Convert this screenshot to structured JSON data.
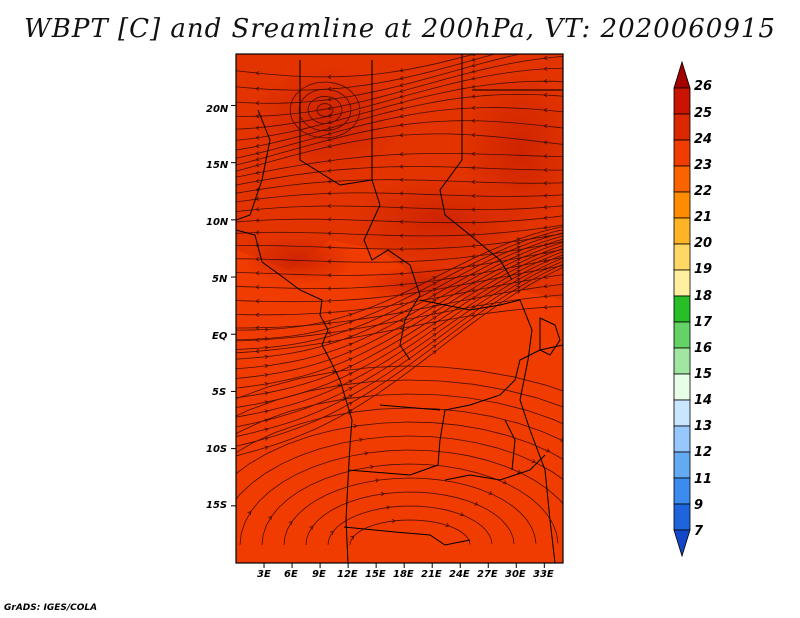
{
  "title": "WBPT [C] and Sreamline at 200hPa, VT: 2020060915",
  "credit": "GrADS: IGES/COLA",
  "map": {
    "variable": "WBPT [C]",
    "overlay": "Sreamline",
    "level": "200hPa",
    "valid_time": "2020060915",
    "lat_range": [
      -20,
      24.5
    ],
    "lon_range": [
      0,
      35
    ],
    "lat_labels": [
      {
        "value": 20,
        "text": "20N"
      },
      {
        "value": 15,
        "text": "15N"
      },
      {
        "value": 10,
        "text": "10N"
      },
      {
        "value": 5,
        "text": "5N"
      },
      {
        "value": 0,
        "text": "EQ"
      },
      {
        "value": -5,
        "text": "5S"
      },
      {
        "value": -10,
        "text": "10S"
      },
      {
        "value": -15,
        "text": "15S"
      }
    ],
    "lon_labels": [
      {
        "value": 3,
        "text": "3E"
      },
      {
        "value": 6,
        "text": "6E"
      },
      {
        "value": 9,
        "text": "9E"
      },
      {
        "value": 12,
        "text": "12E"
      },
      {
        "value": 15,
        "text": "15E"
      },
      {
        "value": 18,
        "text": "18E"
      },
      {
        "value": 21,
        "text": "21E"
      },
      {
        "value": 24,
        "text": "24E"
      },
      {
        "value": 27,
        "text": "27E"
      },
      {
        "value": 30,
        "text": "30E"
      },
      {
        "value": 33,
        "text": "33E"
      }
    ]
  },
  "colorbar": {
    "labels": [
      "26",
      "25",
      "24",
      "23",
      "22",
      "21",
      "20",
      "19",
      "18",
      "17",
      "16",
      "15",
      "14",
      "13",
      "12",
      "11",
      "9",
      "7"
    ],
    "colors": [
      "#a50000",
      "#c81400",
      "#dc2800",
      "#f03c00",
      "#fa6400",
      "#ff8c00",
      "#ffb428",
      "#ffd764",
      "#fff0a0",
      "#28be28",
      "#64d264",
      "#a0e6a0",
      "#e6ffe6",
      "#c8e6ff",
      "#96c8ff",
      "#64aaf0",
      "#3c8cf0",
      "#1e64dc",
      "#1446c8"
    ]
  }
}
